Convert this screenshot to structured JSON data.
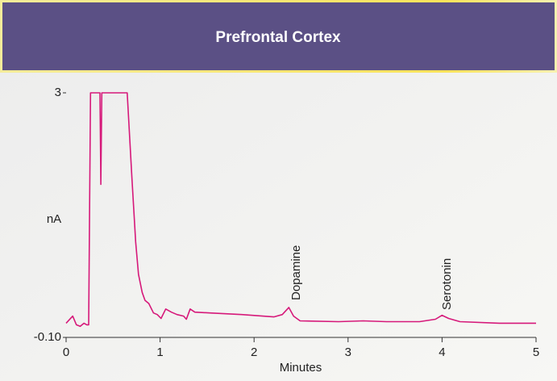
{
  "chart_data": {
    "type": "line",
    "title": "Prefrontal Cortex",
    "xlabel": "Minutes",
    "ylabel": "nA",
    "annotations": [
      "Dopamine",
      "Serotonin"
    ],
    "x": [
      0,
      0.07,
      0.11,
      0.15,
      0.19,
      0.22,
      0.24,
      0.26,
      0.36,
      0.37,
      0.38,
      0.65,
      0.7,
      0.74,
      0.77,
      0.81,
      0.84,
      0.88,
      0.93,
      0.97,
      1.01,
      1.06,
      1.12,
      1.18,
      1.25,
      1.28,
      1.32,
      1.37,
      1.53,
      1.87,
      2.21,
      2.3,
      2.37,
      2.42,
      2.49,
      2.9,
      3.16,
      3.41,
      3.76,
      3.93,
      4.0,
      4.07,
      4.19,
      4.61,
      5.0
    ],
    "values": [
      0.08,
      0.17,
      0.06,
      0.04,
      0.08,
      0.06,
      0.06,
      3,
      3,
      1.84,
      3,
      3,
      1.93,
      1.11,
      0.7,
      0.47,
      0.37,
      0.33,
      0.21,
      0.19,
      0.14,
      0.26,
      0.22,
      0.19,
      0.17,
      0.13,
      0.26,
      0.22,
      0.21,
      0.19,
      0.16,
      0.19,
      0.28,
      0.17,
      0.11,
      0.1,
      0.11,
      0.1,
      0.1,
      0.13,
      0.18,
      0.14,
      0.1,
      0.08,
      0.08
    ],
    "color": "#d6197a",
    "xlim": [
      0,
      5
    ],
    "xticks": [
      0,
      1,
      2,
      3,
      4,
      5
    ],
    "ylim": [
      -0.1,
      3
    ],
    "yticks": [
      {
        "value": -0.1,
        "label": "-0.10"
      },
      3
    ]
  }
}
